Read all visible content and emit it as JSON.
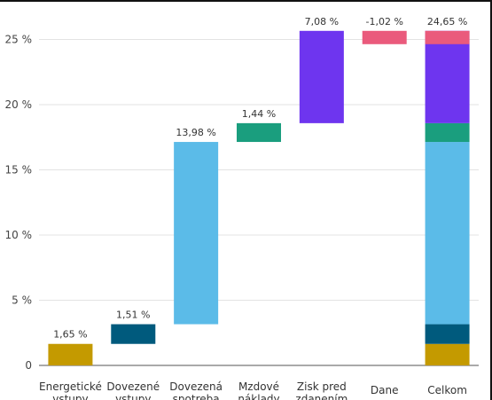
{
  "chart_data": {
    "type": "bar",
    "subtype": "waterfall",
    "title": "",
    "xlabel": "",
    "ylabel": "",
    "ylim": [
      -1.1,
      26
    ],
    "yticks": [
      0,
      5,
      10,
      15,
      20,
      25
    ],
    "ytick_labels": [
      "0",
      "5 %",
      "10 %",
      "15 %",
      "20 %",
      "25 %"
    ],
    "grid": true,
    "legend": "none",
    "categories": [
      {
        "label1": "Energetické",
        "label2": "vstupy"
      },
      {
        "label1": "Dovezené",
        "label2": "vstupy"
      },
      {
        "label1": "Dovezená",
        "label2": "spotreba"
      },
      {
        "label1": "Mzdové",
        "label2": "náklady"
      },
      {
        "label1": "Zisk pred",
        "label2": "zdanením"
      },
      {
        "label1": "Dane",
        "label2": ""
      },
      {
        "label1": "Celkom",
        "label2": ""
      }
    ],
    "values": [
      1.65,
      1.51,
      13.98,
      1.44,
      7.08,
      -1.02,
      24.65
    ],
    "value_labels": [
      "1,65 %",
      "1,51 %",
      "13,98 %",
      "1,44 %",
      "7,08 %",
      "-1,02 %",
      "24,65 %"
    ],
    "colors": [
      "#c49a00",
      "#005a7d",
      "#5bbbe8",
      "#1a9e7e",
      "#6e35ef",
      "#ea5a7c"
    ]
  }
}
